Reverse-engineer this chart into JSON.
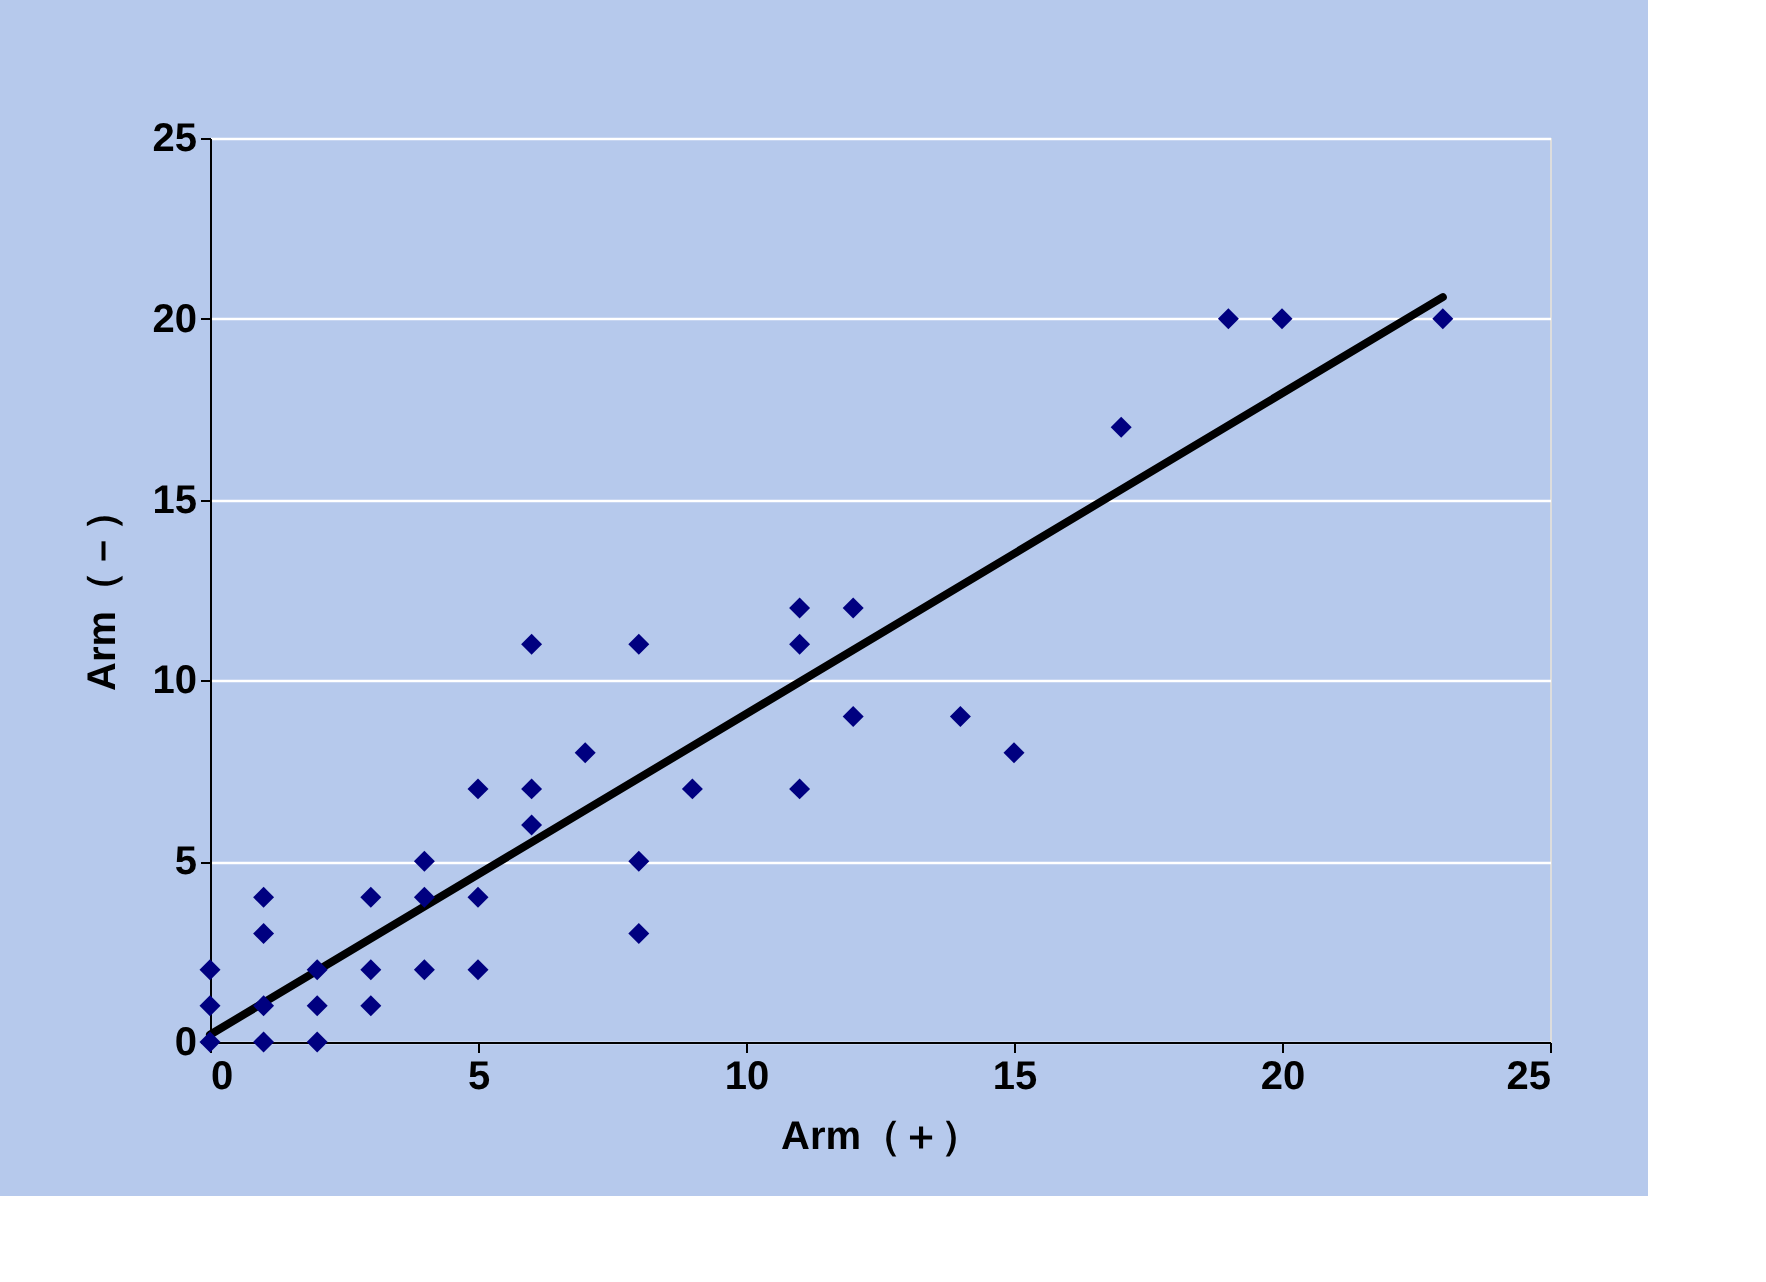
{
  "chart_data": {
    "type": "scatter",
    "xlabel": "Arm（＋）",
    "ylabel": "Arm（－）",
    "xlim": [
      0,
      25
    ],
    "ylim": [
      0,
      25
    ],
    "xticks": [
      0,
      5,
      10,
      15,
      20,
      25
    ],
    "yticks": [
      0,
      5,
      10,
      15,
      20,
      25
    ],
    "grid": "y",
    "marker": "diamond",
    "series": [
      {
        "color": "#000080",
        "x": [
          0,
          0,
          0,
          1,
          1,
          1,
          1,
          2,
          2,
          2,
          3,
          3,
          3,
          4,
          4,
          4,
          5,
          5,
          5,
          6,
          6,
          6,
          7,
          8,
          8,
          8,
          9,
          11,
          11,
          11,
          12,
          12,
          14,
          15,
          17,
          19,
          20,
          23
        ],
        "values": [
          0,
          1,
          2,
          0,
          1,
          3,
          4,
          0,
          1,
          2,
          1,
          2,
          4,
          2,
          4,
          5,
          2,
          4,
          7,
          6,
          7,
          11,
          8,
          3,
          5,
          11,
          7,
          7,
          11,
          12,
          9,
          12,
          9,
          8,
          17,
          20,
          20,
          20
        ]
      },
      {
        "type": "line",
        "color": "#000000",
        "x": [
          0,
          23
        ],
        "values": [
          0.2,
          20.6
        ],
        "marker": "none"
      }
    ]
  }
}
